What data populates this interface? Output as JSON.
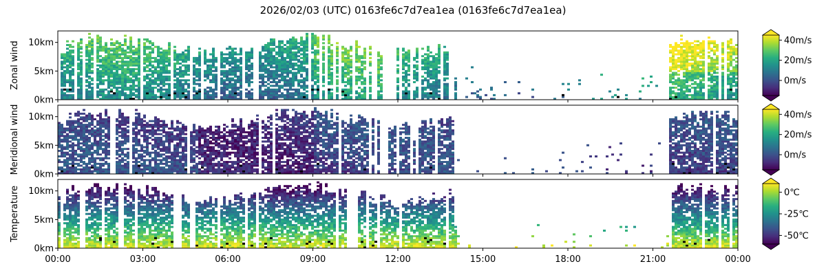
{
  "figure_title": "2026/02/03 (UTC) 0163fe6c7d7ea1ea (0163fe6c7d7ea1ea)",
  "x_ticks": [
    "00:00",
    "03:00",
    "06:00",
    "09:00",
    "12:00",
    "15:00",
    "18:00",
    "21:00",
    "00:00"
  ],
  "colormap": "viridis",
  "chart_data": [
    {
      "type": "heatmap",
      "ylabel": "Zonal wind",
      "x_range_hours": [
        0,
        24
      ],
      "ylim_km": [
        0,
        12
      ],
      "y_ticks": [
        "0km",
        "5km",
        "10km"
      ],
      "colorbar": {
        "ticks": [
          "40m/s",
          "20m/s",
          "0m/s"
        ],
        "tick_values": [
          40,
          20,
          0
        ],
        "range": [
          -15,
          45
        ],
        "extend": "both"
      },
      "coverage": "dense 00:00–14:00 up to ~11km, sparse 14:00–21:30, dense 21:30–24:00",
      "typical_value": "10–25 m/s aloft, highest (~40 m/s) near 22:00–23:30 at 6–10km"
    },
    {
      "type": "heatmap",
      "ylabel": "Meridional wind",
      "x_range_hours": [
        0,
        24
      ],
      "ylim_km": [
        0,
        12
      ],
      "y_ticks": [
        "0km",
        "5km",
        "10km"
      ],
      "colorbar": {
        "ticks": [
          "40m/s",
          "20m/s",
          "0m/s"
        ],
        "tick_values": [
          40,
          20,
          0
        ],
        "range": [
          -15,
          45
        ],
        "extend": "both"
      },
      "coverage": "same pattern as zonal wind",
      "typical_value": "-10 to 5 m/s"
    },
    {
      "type": "heatmap",
      "ylabel": "Temperature",
      "x_range_hours": [
        0,
        24
      ],
      "ylim_km": [
        0,
        12
      ],
      "y_ticks": [
        "0km",
        "5km",
        "10km"
      ],
      "colorbar": {
        "ticks": [
          "0℃",
          "-25℃",
          "-50℃"
        ],
        "tick_values": [
          0,
          -25,
          -50
        ],
        "range": [
          -60,
          10
        ],
        "extend": "both"
      },
      "coverage": "same pattern as wind panels",
      "typical_value": "~5℃ near 0–3km decreasing to ~-55℃ near 10–11km"
    }
  ]
}
